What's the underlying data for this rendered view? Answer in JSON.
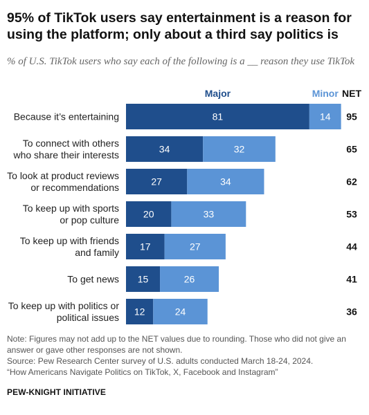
{
  "title": "95% of TikTok users say entertainment is a reason for using the platform; only about a third say politics is",
  "subtitle": "% of U.S. TikTok users who say each of the following is a __ reason they use TikTok",
  "chart_data": {
    "type": "bar",
    "orientation": "horizontal",
    "stacked": true,
    "categories": [
      [
        "Because it’s entertaining"
      ],
      [
        "To connect with others",
        "who share their interests"
      ],
      [
        "To look at product reviews",
        "or recommendations"
      ],
      [
        "To keep up with sports",
        "or pop culture"
      ],
      [
        "To keep up with friends",
        "and family"
      ],
      [
        "To get news"
      ],
      [
        "To keep up with politics or",
        "political issues"
      ]
    ],
    "series": [
      {
        "name": "Major",
        "values": [
          81,
          34,
          27,
          20,
          17,
          15,
          12
        ],
        "color": "#1f4e8c"
      },
      {
        "name": "Minor",
        "values": [
          14,
          32,
          34,
          33,
          27,
          26,
          24
        ],
        "color": "#5b94d6"
      }
    ],
    "net_label": "NET",
    "net": [
      95,
      65,
      62,
      53,
      44,
      41,
      36
    ],
    "xlim": [
      0,
      100
    ],
    "grid": false,
    "legend": "top"
  },
  "notes": {
    "note": "Note: Figures may not add up to the NET values due to rounding. Those who did not give an answer or gave other responses are not shown.",
    "source": "Source: Pew Research Center survey of U.S. adults conducted March 18-24, 2024.",
    "report": "“How Americans Navigate Politics on TikTok, X, Facebook and Instagram”"
  },
  "brand": "PEW-KNIGHT INITIATIVE"
}
